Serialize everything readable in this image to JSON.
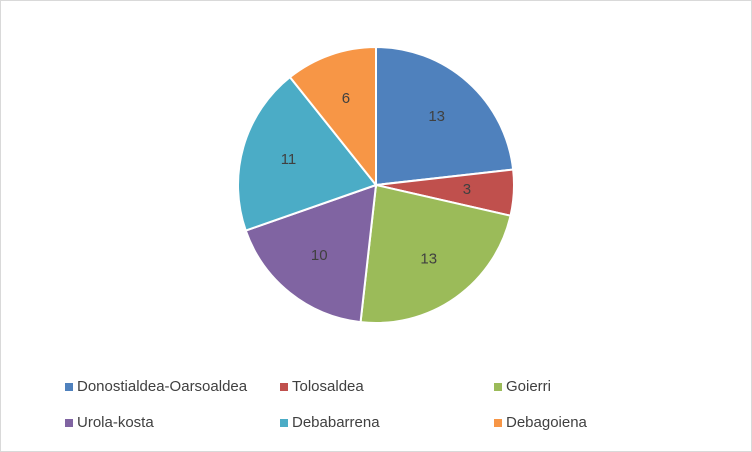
{
  "chart_data": {
    "type": "pie",
    "categories": [
      "Donostialdea-Oarsoaldea",
      "Tolosaldea",
      "Goierri",
      "Urola-kosta",
      "Debabarrena",
      "Debagoiena"
    ],
    "values": [
      13,
      3,
      13,
      10,
      11,
      6
    ],
    "colors": [
      "#4f81bd",
      "#c0504d",
      "#9bbb59",
      "#8064a2",
      "#4bacc6",
      "#f79646"
    ],
    "legend": "bottom",
    "data_labels": true
  }
}
